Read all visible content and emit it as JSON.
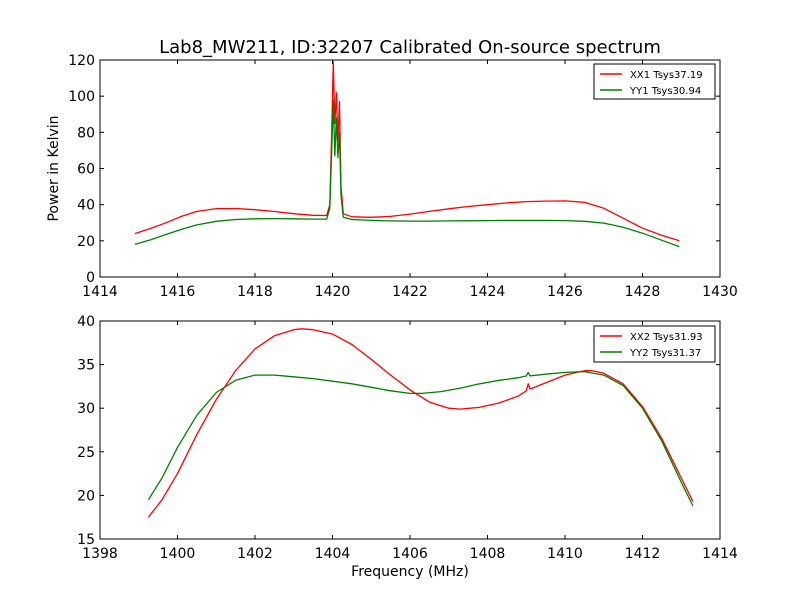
{
  "title": "Lab8_MW211, ID:32207 Calibrated On-source spectrum",
  "chart_data": [
    {
      "type": "line",
      "ylabel": "Power in Kelvin",
      "xlabel": "",
      "xlim": [
        1414,
        1430
      ],
      "ylim": [
        0,
        120
      ],
      "xticks": [
        1414,
        1416,
        1418,
        1420,
        1422,
        1424,
        1426,
        1428,
        1430
      ],
      "yticks": [
        0,
        20,
        40,
        60,
        80,
        100,
        120
      ],
      "grid": false,
      "legend_position": "top-right",
      "series": [
        {
          "name": "XX1 Tsys37.19",
          "color": "#ff0000",
          "points": [
            [
              1414.9,
              24
            ],
            [
              1415.3,
              26.8
            ],
            [
              1415.7,
              30
            ],
            [
              1416.1,
              33.5
            ],
            [
              1416.5,
              36.3
            ],
            [
              1417.0,
              37.8
            ],
            [
              1417.5,
              37.9
            ],
            [
              1418.0,
              37.2
            ],
            [
              1418.5,
              36.2
            ],
            [
              1419.0,
              35
            ],
            [
              1419.5,
              34.1
            ],
            [
              1419.85,
              34
            ],
            [
              1419.93,
              40
            ],
            [
              1419.98,
              80
            ],
            [
              1420.02,
              119
            ],
            [
              1420.06,
              85
            ],
            [
              1420.1,
              102
            ],
            [
              1420.14,
              75
            ],
            [
              1420.18,
              97
            ],
            [
              1420.22,
              50
            ],
            [
              1420.28,
              35
            ],
            [
              1420.5,
              33.3
            ],
            [
              1421.0,
              33
            ],
            [
              1421.5,
              33.5
            ],
            [
              1422.0,
              34.8
            ],
            [
              1422.5,
              36.3
            ],
            [
              1423.0,
              37.7
            ],
            [
              1423.5,
              39
            ],
            [
              1424.0,
              40
            ],
            [
              1424.5,
              41
            ],
            [
              1425.0,
              41.7
            ],
            [
              1425.5,
              42
            ],
            [
              1426.0,
              42.1
            ],
            [
              1426.5,
              41.3
            ],
            [
              1427.0,
              38
            ],
            [
              1427.5,
              32.5
            ],
            [
              1428.0,
              27
            ],
            [
              1428.5,
              23
            ],
            [
              1428.95,
              20
            ]
          ]
        },
        {
          "name": "YY1 Tsys30.94",
          "color": "#008000",
          "points": [
            [
              1414.9,
              18
            ],
            [
              1415.3,
              20.5
            ],
            [
              1415.7,
              23.5
            ],
            [
              1416.1,
              26.3
            ],
            [
              1416.5,
              28.8
            ],
            [
              1417.0,
              30.8
            ],
            [
              1417.5,
              31.8
            ],
            [
              1418.0,
              32.2
            ],
            [
              1418.5,
              32.3
            ],
            [
              1419.0,
              32.2
            ],
            [
              1419.5,
              32
            ],
            [
              1419.85,
              32
            ],
            [
              1419.93,
              38
            ],
            [
              1419.98,
              70
            ],
            [
              1420.02,
              98
            ],
            [
              1420.06,
              67
            ],
            [
              1420.1,
              88
            ],
            [
              1420.14,
              66
            ],
            [
              1420.18,
              80
            ],
            [
              1420.22,
              45
            ],
            [
              1420.28,
              33
            ],
            [
              1420.5,
              31.8
            ],
            [
              1421.0,
              31.3
            ],
            [
              1421.5,
              31
            ],
            [
              1422.0,
              30.9
            ],
            [
              1422.5,
              30.9
            ],
            [
              1423.0,
              31
            ],
            [
              1423.5,
              31.1
            ],
            [
              1424.0,
              31.2
            ],
            [
              1424.5,
              31.3
            ],
            [
              1425.0,
              31.3
            ],
            [
              1425.5,
              31.3
            ],
            [
              1426.0,
              31.2
            ],
            [
              1426.5,
              30.8
            ],
            [
              1427.0,
              29.8
            ],
            [
              1427.5,
              27.5
            ],
            [
              1428.0,
              24.2
            ],
            [
              1428.5,
              20.3
            ],
            [
              1428.95,
              16.8
            ]
          ]
        }
      ]
    },
    {
      "type": "line",
      "ylabel": "",
      "xlabel": "Frequency (MHz)",
      "xlim": [
        1398,
        1414
      ],
      "ylim": [
        15,
        40
      ],
      "xticks": [
        1398,
        1400,
        1402,
        1404,
        1406,
        1408,
        1410,
        1412,
        1414
      ],
      "yticks": [
        15,
        20,
        25,
        30,
        35,
        40
      ],
      "grid": false,
      "legend_position": "top-right",
      "series": [
        {
          "name": "XX2 Tsys31.93",
          "color": "#ff0000",
          "points": [
            [
              1399.25,
              17.5
            ],
            [
              1399.6,
              19.5
            ],
            [
              1400.0,
              22.5
            ],
            [
              1400.5,
              27
            ],
            [
              1401.0,
              31
            ],
            [
              1401.5,
              34.3
            ],
            [
              1402.0,
              36.8
            ],
            [
              1402.5,
              38.3
            ],
            [
              1403.0,
              39
            ],
            [
              1403.2,
              39.1
            ],
            [
              1403.5,
              39
            ],
            [
              1404.0,
              38.5
            ],
            [
              1404.5,
              37.3
            ],
            [
              1405.0,
              35.6
            ],
            [
              1405.5,
              33.8
            ],
            [
              1406.0,
              32.1
            ],
            [
              1406.5,
              30.7
            ],
            [
              1407.0,
              30
            ],
            [
              1407.3,
              29.9
            ],
            [
              1407.8,
              30.1
            ],
            [
              1408.3,
              30.6
            ],
            [
              1408.8,
              31.4
            ],
            [
              1409.0,
              32
            ],
            [
              1409.05,
              32.8
            ],
            [
              1409.1,
              32.2
            ],
            [
              1409.5,
              32.9
            ],
            [
              1410.0,
              33.8
            ],
            [
              1410.5,
              34.3
            ],
            [
              1410.7,
              34.3
            ],
            [
              1411.0,
              34
            ],
            [
              1411.5,
              32.8
            ],
            [
              1412.0,
              30.2
            ],
            [
              1412.5,
              26.5
            ],
            [
              1413.0,
              22
            ],
            [
              1413.3,
              19.3
            ]
          ]
        },
        {
          "name": "YY2 Tsys31.37",
          "color": "#008000",
          "points": [
            [
              1399.25,
              19.5
            ],
            [
              1399.6,
              22
            ],
            [
              1400.0,
              25.5
            ],
            [
              1400.5,
              29.2
            ],
            [
              1401.0,
              31.8
            ],
            [
              1401.5,
              33.2
            ],
            [
              1402.0,
              33.8
            ],
            [
              1402.5,
              33.8
            ],
            [
              1403.0,
              33.6
            ],
            [
              1403.5,
              33.4
            ],
            [
              1404.0,
              33.1
            ],
            [
              1404.5,
              32.8
            ],
            [
              1405.0,
              32.4
            ],
            [
              1405.5,
              32
            ],
            [
              1406.0,
              31.7
            ],
            [
              1406.3,
              31.7
            ],
            [
              1406.8,
              31.9
            ],
            [
              1407.3,
              32.3
            ],
            [
              1407.8,
              32.8
            ],
            [
              1408.3,
              33.2
            ],
            [
              1408.8,
              33.5
            ],
            [
              1409.0,
              33.7
            ],
            [
              1409.05,
              34.1
            ],
            [
              1409.1,
              33.7
            ],
            [
              1409.5,
              33.9
            ],
            [
              1410.0,
              34.1
            ],
            [
              1410.5,
              34.2
            ],
            [
              1411.0,
              33.8
            ],
            [
              1411.5,
              32.6
            ],
            [
              1412.0,
              30
            ],
            [
              1412.5,
              26.2
            ],
            [
              1413.0,
              21.5
            ],
            [
              1413.3,
              18.8
            ]
          ]
        }
      ]
    }
  ]
}
